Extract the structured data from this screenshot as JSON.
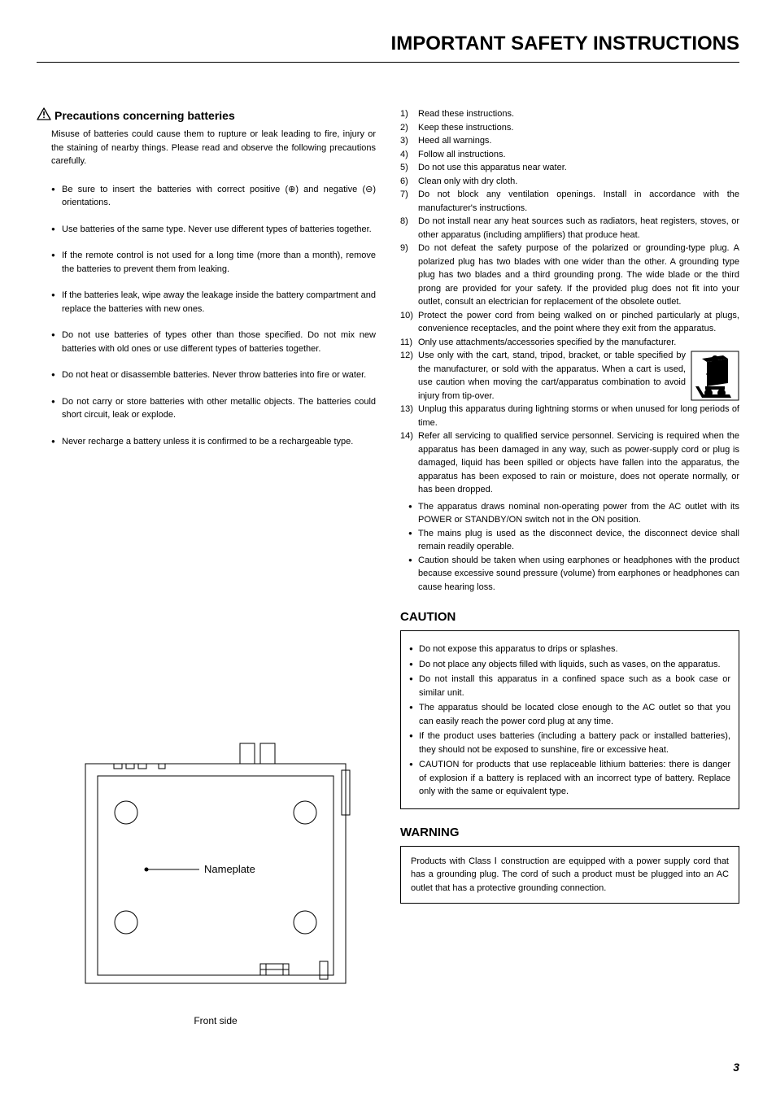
{
  "header": {
    "title": "IMPORTANT SAFETY INSTRUCTIONS"
  },
  "left": {
    "section_title": "Precautions concerning batteries",
    "intro": "Misuse of batteries could cause them to rupture or leak leading to fire, injury or the staining of nearby things. Please read and observe the following precautions carefully.",
    "bullets": [
      "Be sure to insert the batteries with correct positive (⊕) and negative (⊖) orientations.",
      "Use batteries of the same type. Never use different types of batteries together.",
      "If the remote control is not used for a long time (more than a month), remove the batteries to prevent them from leaking.",
      "If the batteries leak, wipe away the leakage inside the battery compartment and replace the batteries with new ones.",
      "Do not use batteries of types other than those specified. Do not mix new batteries with old ones or use different types of batteries together.",
      "Do not heat or disassemble batteries. Never throw batteries into fire or water.",
      "Do not carry or store batteries with other metallic objects. The batteries could short circuit, leak or explode.",
      "Never recharge a battery unless it is confirmed to be a rechargeable type."
    ],
    "diagram": {
      "nameplate_label": "Nameplate",
      "caption": "Front side",
      "stroke_color": "#000",
      "bg_color": "#fff",
      "line_width": 1
    }
  },
  "right": {
    "numbered": [
      "Read these instructions.",
      "Keep these instructions.",
      "Heed all warnings.",
      "Follow all instructions.",
      "Do not use this apparatus near water.",
      "Clean only with dry cloth.",
      "Do not block any ventilation openings. Install in accordance with the manufacturer's instructions.",
      "Do not install near any heat sources such as radiators, heat registers, stoves, or other apparatus (including amplifiers) that produce heat.",
      "Do not defeat the safety purpose of the polarized or grounding-type plug. A polarized plug has two blades with one wider than the other. A grounding type plug has two blades and a third grounding prong. The wide blade or the third prong are provided for your safety. If the provided plug does not fit into your outlet, consult an electrician for replacement of the obsolete outlet.",
      "Protect the power cord from being walked on or pinched particularly at plugs, convenience receptacles, and the point where they exit from the apparatus.",
      "Only use attachments/accessories specified by the manufacturer.",
      "Use only with the cart, stand, tripod, bracket, or table specified by the manufacturer, or sold with the apparatus. When a cart is used, use caution when moving the cart/apparatus combination to avoid injury from tip-over.",
      "Unplug this apparatus during lightning storms or when unused for long periods of time.",
      "Refer all servicing to qualified service personnel. Servicing is required when the apparatus has been damaged in any way, such as power-supply cord or plug is damaged, liquid has been spilled or objects have fallen into the apparatus, the apparatus has been exposed to rain or moisture, does not operate normally, or has been dropped."
    ],
    "extra_bullets": [
      "The apparatus draws nominal non-operating power from the AC outlet with its POWER or STANDBY/ON switch not in the ON position.",
      "The mains plug is used as the disconnect device, the disconnect device shall remain readily operable.",
      "Caution should be taken when using earphones or headphones with the product because excessive sound pressure (volume) from earphones or headphones can cause hearing loss."
    ],
    "caution_title": "CAUTION",
    "caution_bullets": [
      "Do not expose this apparatus to drips or splashes.",
      "Do not place any objects filled with liquids, such as vases, on the apparatus.",
      "Do not install this apparatus in a confined space such as a book case or similar unit.",
      "The apparatus should be located close enough to the AC outlet so that you can easily reach the power cord plug at any time.",
      "If the product uses batteries (including a battery pack or installed batteries), they should not be exposed to sunshine, fire or excessive heat.",
      "CAUTION for products that use replaceable lithium batteries: there is danger of explosion if a battery is replaced with an incorrect type of battery. Replace only with the same or equivalent type."
    ],
    "warning_title": "WARNING",
    "warning_text": "Products with Class Ⅰ construction are equipped with a power supply cord that has a grounding plug. The cord of such a product must be plugged into an AC outlet that has a protective grounding connection."
  },
  "page_number": "3"
}
